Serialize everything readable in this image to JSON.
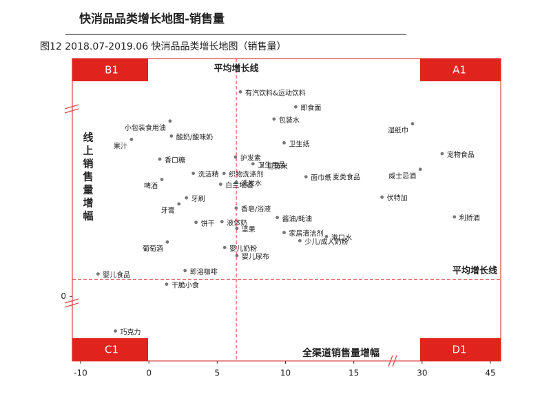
{
  "chart_data": {
    "type": "scatter",
    "title": "快消品品类增长地图-销售量",
    "subtitle": "图12 2018.07-2019.06 快消品品类增长地图（销售量）",
    "x_label": "全渠道销售量增幅",
    "y_label": "线上销售量增幅",
    "quadrants": [
      "B1",
      "A1",
      "C1",
      "D1"
    ],
    "quadrant_color": "#e0231d",
    "reference_lines": {
      "x": 6.4,
      "y": 2.5,
      "x_label": "平均增长线",
      "y_label": "平均增长线"
    },
    "xticks": [
      -10,
      0,
      5,
      10,
      15,
      30,
      45
    ],
    "xlim": [
      -10,
      45
    ],
    "ylim": [
      -9.5,
      35
    ],
    "yticks": [
      0
    ],
    "color": "#777777",
    "point_labels": [
      "有汽饮料&运动饮料",
      "即食面",
      "包装水",
      "湿纸巾",
      "小包装食用油",
      "酸奶/酸味奶",
      "果汁",
      "卫生纸",
      "宠物食品",
      "香口糖",
      "护发素",
      "卫生用品",
      "包装米",
      "面巾纸",
      "威士忌酒",
      "洗洁精",
      "织物洗涤剂",
      "啤酒",
      "麦类食品",
      "洗发水",
      "白兰地酒",
      "牙刷",
      "伏特加",
      "牙膏",
      "香皂/浴液",
      "饼干",
      "液体奶",
      "酱油/蚝油",
      "利娇酒",
      "坚果",
      "家居清洁剂",
      "漱口水",
      "葡萄酒",
      "婴儿奶粉",
      "少儿/成人奶粉",
      "婴儿尿布",
      "即溶咖啡",
      "婴儿食品",
      "干脆小食",
      "巧克力"
    ],
    "x": [
      6.7,
      10.75,
      9.16,
      27.9,
      1.55,
      1.65,
      -2.55,
      9.9,
      34.4,
      0.8,
      6.34,
      7.62,
      8.3,
      11.5,
      29.6,
      3.25,
      5.5,
      0.95,
      13.1,
      6.39,
      5.25,
      2.75,
      21.2,
      2.2,
      6.39,
      3.45,
      5.35,
      9.4,
      37.1,
      6.44,
      9.9,
      13.0,
      1.35,
      5.55,
      11.05,
      6.44,
      2.65,
      -7.45,
      1.3,
      -4.9
    ],
    "values": [
      30.1,
      27.9,
      26.1,
      25.4,
      25.8,
      23.6,
      23.1,
      22.6,
      21.0,
      20.2,
      20.5,
      19.5,
      19.3,
      17.6,
      18.7,
      18.1,
      18.1,
      17.2,
      17.7,
      16.8,
      16.5,
      14.5,
      14.6,
      13.6,
      13.0,
      10.9,
      11.0,
      11.6,
      11.7,
      10.0,
      9.4,
      8.8,
      8.0,
      7.2,
      8.2,
      6.0,
      3.8,
      3.3,
      1.8,
      -5.1
    ]
  }
}
